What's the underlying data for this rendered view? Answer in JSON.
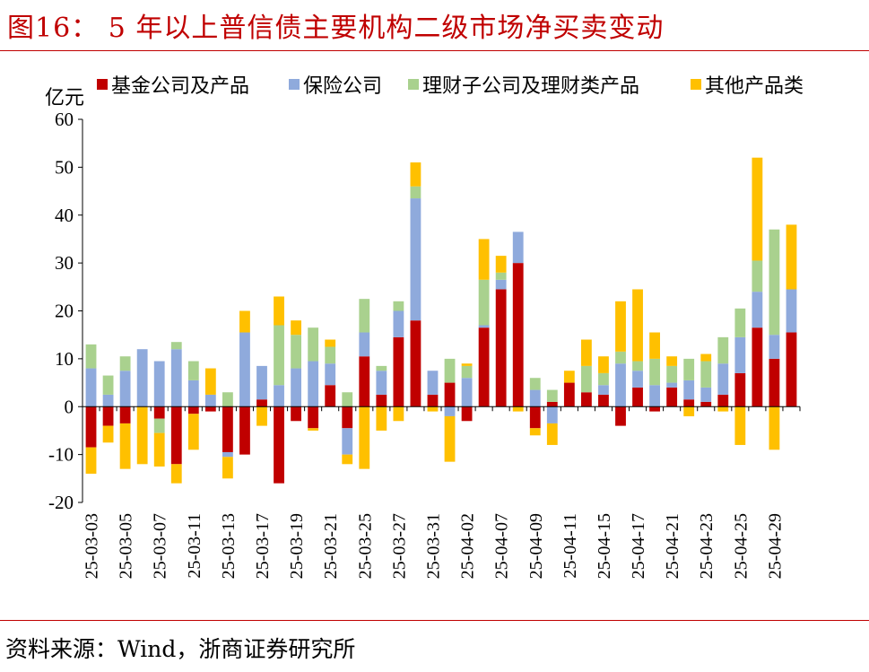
{
  "title": "图16：  5 年以上普信债主要机构二级市场净买卖变动",
  "source": "资料来源：Wind，浙商证券研究所",
  "chart_data": {
    "type": "bar",
    "stacked": true,
    "ylabel": "亿元",
    "ylim": [
      -20,
      60
    ],
    "yticks": [
      -20,
      -10,
      0,
      10,
      20,
      30,
      40,
      50,
      60
    ],
    "grid": false,
    "legend_position": "top",
    "categories": [
      "25-03-03",
      "25-03-04",
      "25-03-05",
      "25-03-06",
      "25-03-07",
      "25-03-10",
      "25-03-11",
      "25-03-12",
      "25-03-13",
      "25-03-14",
      "25-03-17",
      "25-03-18",
      "25-03-19",
      "25-03-20",
      "25-03-21",
      "25-03-24",
      "25-03-25",
      "25-03-26",
      "25-03-27",
      "25-03-28",
      "25-03-31",
      "25-04-01",
      "25-04-02",
      "25-04-03",
      "25-04-07",
      "25-04-08",
      "25-04-09",
      "25-04-10",
      "25-04-11",
      "25-04-14",
      "25-04-15",
      "25-04-16",
      "25-04-17",
      "25-04-18",
      "25-04-21",
      "25-04-22",
      "25-04-23",
      "25-04-24",
      "25-04-25",
      "25-04-28",
      "25-04-29",
      "25-04-30"
    ],
    "xtick_labels": [
      "25-03-03",
      "",
      "25-03-05",
      "",
      "25-03-07",
      "",
      "25-03-11",
      "",
      "25-03-13",
      "",
      "25-03-17",
      "",
      "25-03-19",
      "",
      "25-03-21",
      "",
      "25-03-25",
      "",
      "25-03-27",
      "",
      "25-03-31",
      "",
      "25-04-02",
      "",
      "25-04-07",
      "",
      "25-04-09",
      "",
      "25-04-11",
      "",
      "25-04-15",
      "",
      "25-04-17",
      "",
      "25-04-21",
      "",
      "25-04-23",
      "",
      "25-04-25",
      "",
      "25-04-29",
      ""
    ],
    "series": [
      {
        "name": "基金公司及产品",
        "color": "#c00000",
        "values": [
          -8.5,
          -4,
          -3.5,
          0,
          -2.5,
          -12,
          -1.5,
          -1,
          -9.5,
          -10,
          1.5,
          -16,
          -3,
          -4.5,
          4.5,
          -4.5,
          10.5,
          2.5,
          14.5,
          18,
          2.5,
          5,
          -3,
          16.5,
          24.5,
          30,
          -4.5,
          1,
          5,
          3,
          2.5,
          -4,
          4,
          -1,
          4,
          1.5,
          1,
          2.5,
          7,
          16.5,
          10,
          15.5
        ]
      },
      {
        "name": "保险公司",
        "color": "#8faadc",
        "values": [
          8,
          2.5,
          7.5,
          12,
          9.5,
          12,
          5.5,
          2.5,
          -1,
          15.5,
          7,
          4.5,
          8,
          9.5,
          4.5,
          -5.5,
          5,
          5,
          5.5,
          25.5,
          5,
          -2,
          6,
          0.5,
          2,
          6.5,
          3.5,
          -3.5,
          0,
          0,
          2,
          9,
          3.5,
          4.5,
          1,
          4,
          3,
          6.5,
          7.5,
          7.5,
          5,
          9
        ]
      },
      {
        "name": "理财子公司及理财类产品",
        "color": "#a9d18e",
        "values": [
          5,
          4,
          3,
          0,
          -3,
          1.5,
          4,
          0,
          3,
          0,
          0,
          12.5,
          7,
          7,
          3.5,
          3,
          7,
          1,
          2,
          2.5,
          0,
          5,
          2.5,
          9.5,
          1.5,
          0,
          2.5,
          2.5,
          0,
          5.5,
          2.5,
          2.5,
          2,
          5.5,
          3.5,
          4.5,
          5.5,
          5.5,
          6,
          6.5,
          22,
          0
        ]
      },
      {
        "name": "其他产品类",
        "color": "#ffc000",
        "values": [
          -5.5,
          -3.5,
          -9.5,
          -12,
          -7,
          -4,
          -7.5,
          5.5,
          -4.5,
          4.5,
          -4,
          6,
          3,
          -0.5,
          1.5,
          -2,
          -13,
          -5,
          -3,
          5,
          -1,
          -9.5,
          0.5,
          8.5,
          3.5,
          -1,
          -1.5,
          -4.5,
          2.5,
          5.5,
          3.5,
          10.5,
          15,
          5.5,
          2,
          -2,
          1.5,
          -1,
          -8,
          21.5,
          -9,
          13.5
        ]
      }
    ]
  }
}
